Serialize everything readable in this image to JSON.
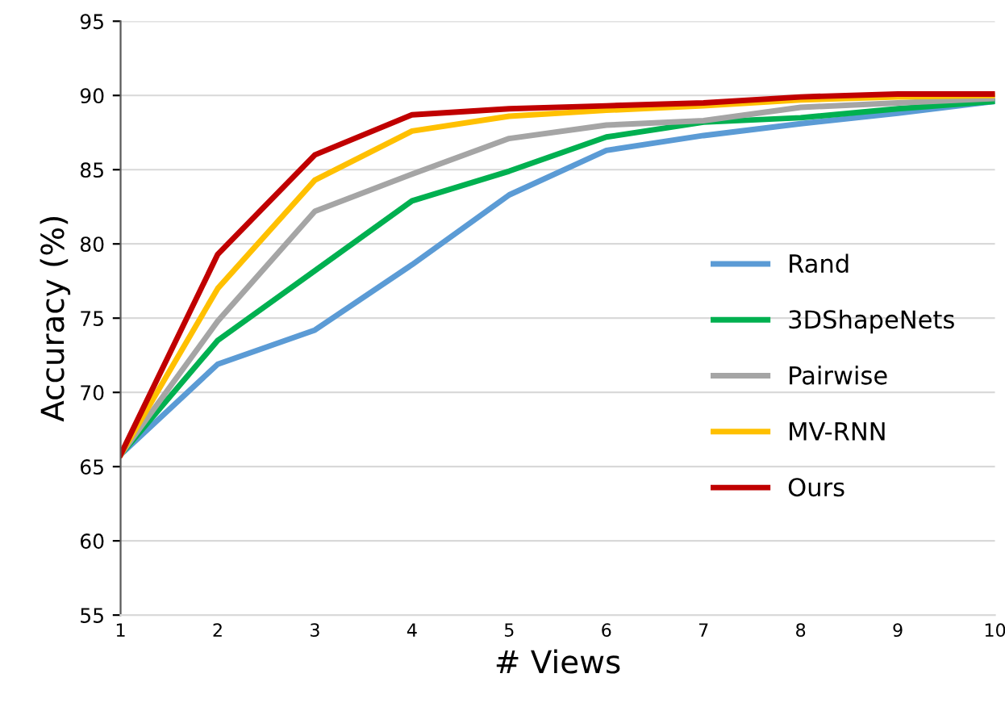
{
  "chart_data": {
    "type": "line",
    "xlabel": "# Views",
    "ylabel": "Accuracy (%)",
    "x": [
      1,
      2,
      3,
      4,
      5,
      6,
      7,
      8,
      9,
      10
    ],
    "series": [
      {
        "name": "Rand",
        "color": "#5b9bd5",
        "values": [
          65.8,
          71.9,
          74.2,
          78.6,
          83.3,
          86.3,
          87.3,
          88.1,
          88.8,
          89.6
        ]
      },
      {
        "name": "3DShapeNets",
        "color": "#00b050",
        "values": [
          65.8,
          73.5,
          78.2,
          82.9,
          84.9,
          87.2,
          88.2,
          88.5,
          89.1,
          89.6
        ]
      },
      {
        "name": "Pairwise",
        "color": "#a5a5a5",
        "values": [
          65.8,
          74.8,
          82.2,
          84.7,
          87.1,
          88.0,
          88.3,
          89.2,
          89.5,
          89.8
        ]
      },
      {
        "name": "MV-RNN",
        "color": "#ffc000",
        "values": [
          65.8,
          77.0,
          84.3,
          87.6,
          88.6,
          89.0,
          89.3,
          89.7,
          89.9,
          90.0
        ]
      },
      {
        "name": "Ours",
        "color": "#c00000",
        "values": [
          65.8,
          79.3,
          86.0,
          88.7,
          89.1,
          89.3,
          89.5,
          89.9,
          90.1,
          90.1
        ]
      }
    ],
    "xlim": [
      1,
      10
    ],
    "xticks": [
      1,
      2,
      3,
      4,
      5,
      6,
      7,
      8,
      9,
      10
    ],
    "ylim": [
      55,
      95
    ],
    "yticks": [
      55,
      60,
      65,
      70,
      75,
      80,
      85,
      90,
      95
    ],
    "grid": "y",
    "legend": "right",
    "marker": "none",
    "line_style": "solid"
  }
}
